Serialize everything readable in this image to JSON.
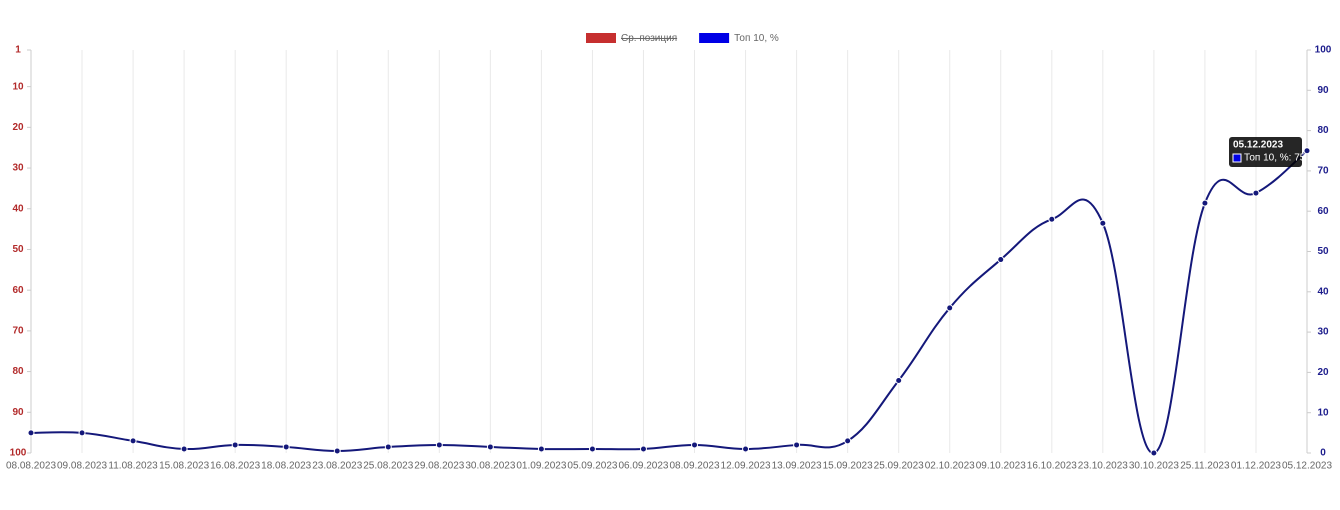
{
  "chart_data": {
    "type": "line",
    "categories": [
      "08.08.2023",
      "09.08.2023",
      "11.08.2023",
      "15.08.2023",
      "16.08.2023",
      "18.08.2023",
      "23.08.2023",
      "25.08.2023",
      "29.08.2023",
      "30.08.2023",
      "01.09.2023",
      "05.09.2023",
      "06.09.2023",
      "08.09.2023",
      "12.09.2023",
      "13.09.2023",
      "15.09.2023",
      "25.09.2023",
      "02.10.2023",
      "09.10.2023",
      "16.10.2023",
      "23.10.2023",
      "30.10.2023",
      "25.11.2023",
      "01.12.2023",
      "05.12.2023"
    ],
    "series": [
      {
        "name": "Ср. позиция",
        "color": "#c62f2f",
        "hidden": true,
        "values": [
          null,
          null,
          null,
          null,
          null,
          null,
          null,
          null,
          null,
          null,
          null,
          null,
          null,
          null,
          null,
          null,
          null,
          null,
          null,
          null,
          null,
          null,
          null,
          null,
          null,
          null
        ]
      },
      {
        "name": "Топ 10, %",
        "color": "#0000e6",
        "line_color": "#14187a",
        "axis": "y2",
        "values": [
          5,
          5,
          3,
          1,
          2,
          1.5,
          0.5,
          1.5,
          2,
          1.5,
          1,
          1,
          1,
          2,
          1,
          2,
          3,
          18,
          36,
          48,
          58,
          57,
          0,
          62,
          64.5,
          75
        ]
      }
    ],
    "ylim": [
      1,
      100
    ],
    "y_reversed": true,
    "yticks": [
      1,
      10,
      20,
      30,
      40,
      50,
      60,
      70,
      80,
      90,
      100
    ],
    "ytick_color": "#b22a2a",
    "y2lim": [
      0,
      100
    ],
    "y2ticks": [
      0,
      10,
      20,
      30,
      40,
      50,
      60,
      70,
      80,
      90,
      100
    ],
    "y2tick_color": "#1c1c8c",
    "grid": true,
    "tooltip": {
      "title": "05.12.2023",
      "series": 1,
      "index": 25
    }
  }
}
